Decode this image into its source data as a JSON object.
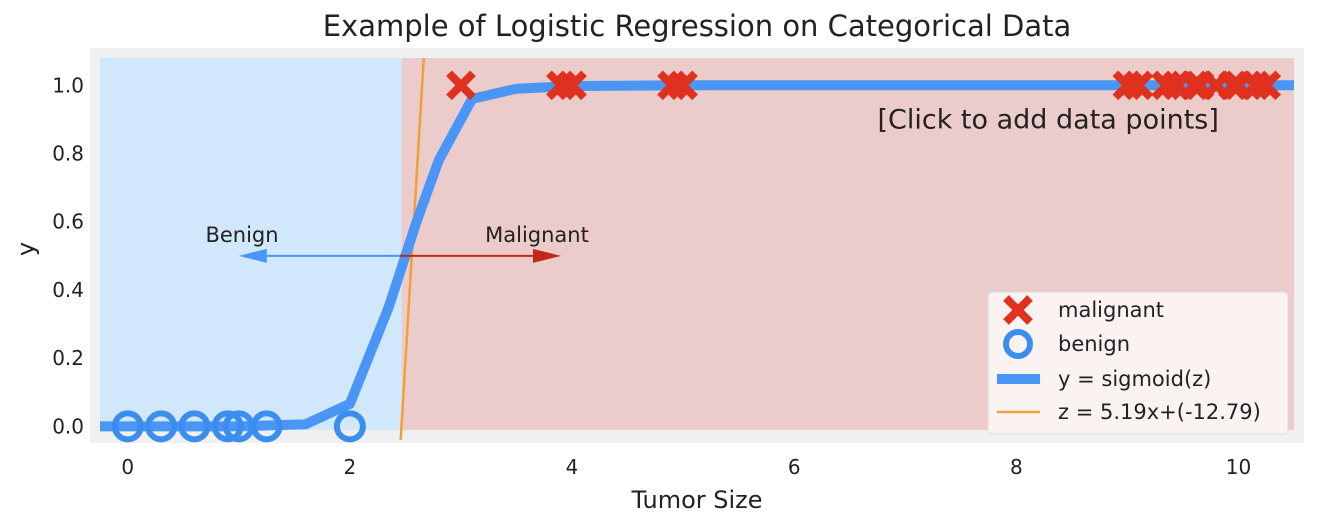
{
  "chart_data": {
    "type": "scatter",
    "title": "Example of Logistic Regression on Categorical Data",
    "xlabel": "Tumor Size",
    "ylabel": "y",
    "xlim": [
      -0.25,
      10.5
    ],
    "ylim": [
      -0.04,
      1.08
    ],
    "xticks": [
      0,
      2,
      4,
      6,
      8,
      10
    ],
    "yticks": [
      0.0,
      0.2,
      0.4,
      0.6,
      0.8,
      1.0
    ],
    "grid": false,
    "legend_position": "bottom-right",
    "decision_boundary_x": 2.465,
    "series": [
      {
        "name": "malignant",
        "marker": "x",
        "color": "#e0301e",
        "x": [
          3.0,
          3.9,
          4.0,
          4.9,
          5.0,
          9.0,
          9.1,
          9.35,
          9.45,
          9.6,
          9.65,
          9.8,
          9.95,
          10.0,
          10.15,
          10.25
        ],
        "y": [
          1,
          1,
          1,
          1,
          1,
          1,
          1,
          1,
          1,
          1,
          1,
          1,
          1,
          1,
          1,
          1
        ]
      },
      {
        "name": "benign",
        "marker": "o",
        "color": "#3b8ef0",
        "x": [
          0.0,
          0.3,
          0.6,
          0.9,
          1.0,
          1.25,
          2.0
        ],
        "y": [
          0,
          0,
          0,
          0,
          0,
          0,
          0
        ]
      },
      {
        "name": "y = sigmoid(z)",
        "type": "line",
        "color": "#4a96f7",
        "x": [
          -0.25,
          0.0,
          0.5,
          1.0,
          1.6,
          2.0,
          2.35,
          2.6,
          2.8,
          3.1,
          3.5,
          4.0,
          5.0,
          6.0,
          8.0,
          10.0,
          10.5
        ],
        "y": [
          0.0,
          0.0,
          0.0,
          0.0,
          0.006,
          0.066,
          0.35,
          0.6,
          0.78,
          0.96,
          0.99,
          0.998,
          1.0,
          1.0,
          1.0,
          1.0,
          1.0
        ]
      },
      {
        "name": "z = 5.19x+(-12.79)",
        "type": "line",
        "color": "#f0a035",
        "x": [
          2.457,
          2.665
        ],
        "y": [
          -0.04,
          1.08
        ]
      }
    ],
    "annotations": [
      {
        "text": "Benign",
        "arrow_from_x": 2.45,
        "arrow_to_x": 1.0,
        "y": 0.5,
        "color": "#4a96f7"
      },
      {
        "text": "Malignant",
        "arrow_from_x": 2.45,
        "arrow_to_x": 3.9,
        "y": 0.5,
        "color": "#c0281c"
      },
      {
        "text": "[Click to add data points]",
        "x": 6.75,
        "y": 0.9
      }
    ]
  },
  "colors": {
    "benign_region": "#d1e7fb",
    "malignant_region": "#ecccca",
    "frame": "#f0f0f0",
    "legend_bg": "#fbf3f2"
  }
}
